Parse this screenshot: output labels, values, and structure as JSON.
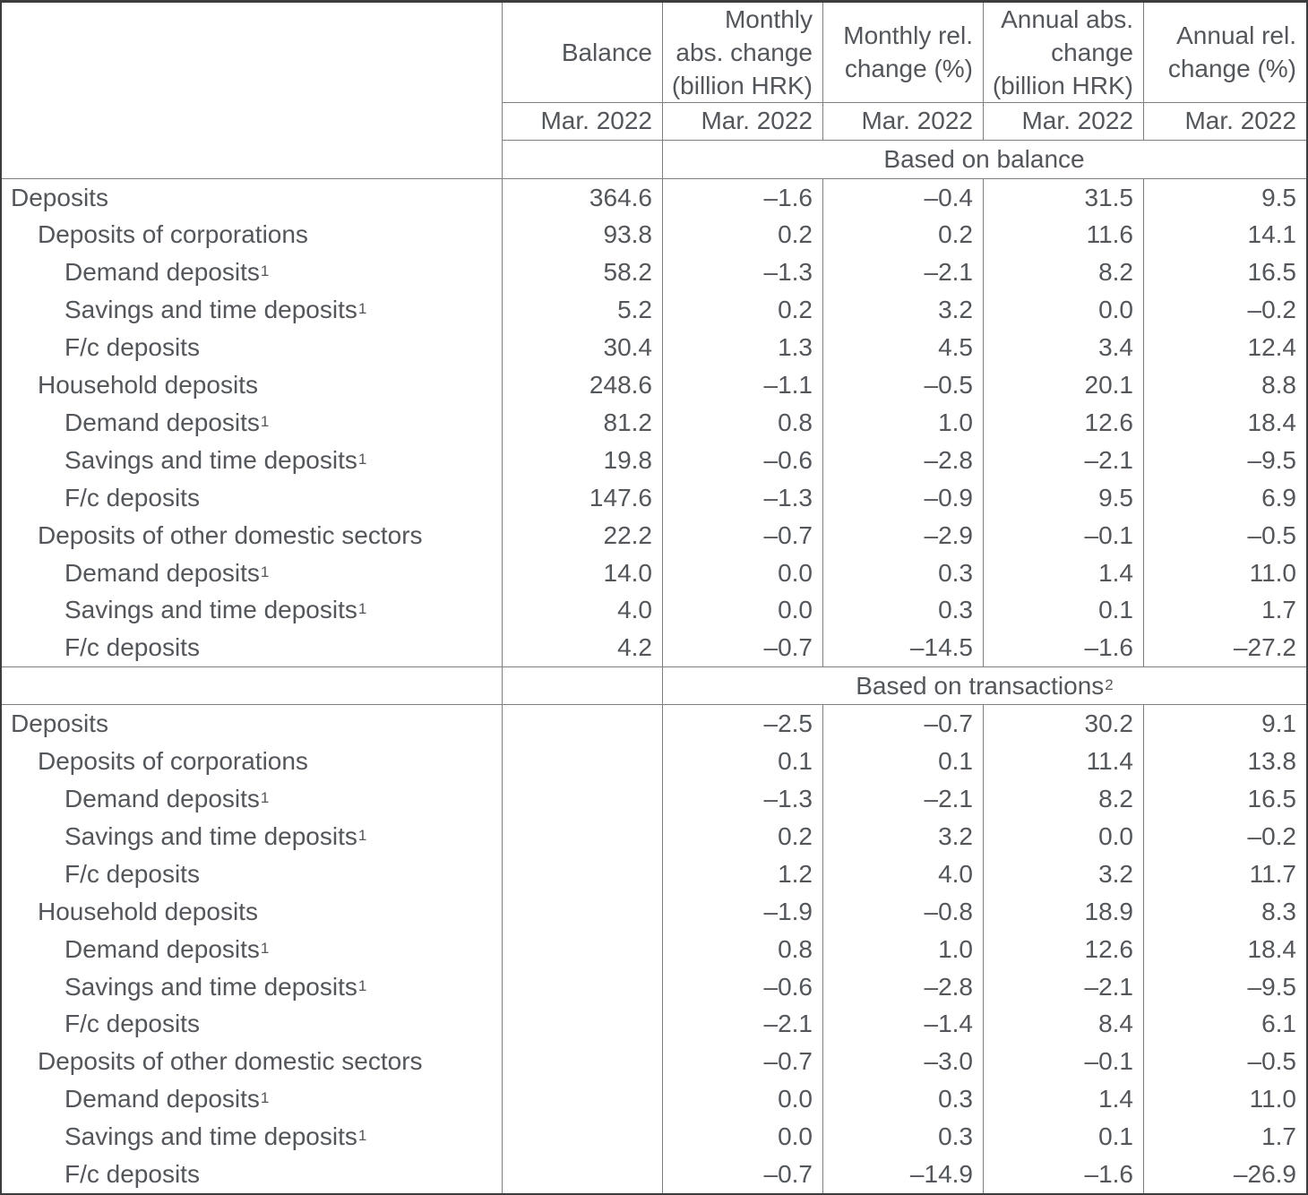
{
  "chart_data": {
    "type": "table",
    "title": "",
    "period": "Mar. 2022",
    "columns": [
      {
        "label": "Balance",
        "header_lines": [
          "Balance"
        ]
      },
      {
        "label": "Monthly abs. change (billion HRK)",
        "header_lines": [
          "Monthly",
          "abs. change",
          "(billion HRK)"
        ]
      },
      {
        "label": "Monthly rel. change (%)",
        "header_lines": [
          "Monthly rel.",
          "change (%)"
        ]
      },
      {
        "label": "Annual abs. change (billion HRK)",
        "header_lines": [
          "Annual abs.",
          "change",
          "(billion HRK)"
        ]
      },
      {
        "label": "Annual rel. change (%)",
        "header_lines": [
          "Annual rel.",
          "change (%)"
        ]
      }
    ],
    "sections": [
      {
        "title": "Based on balance",
        "title_sup": "",
        "rows": [
          {
            "label": "Deposits",
            "indent": 0,
            "values": [
              "364.6",
              "–1.6",
              "–0.4",
              "31.5",
              "9.5"
            ]
          },
          {
            "label": "Deposits of corporations",
            "indent": 1,
            "values": [
              "93.8",
              "0.2",
              "0.2",
              "11.6",
              "14.1"
            ]
          },
          {
            "label": "Demand deposits",
            "sup": "1",
            "indent": 2,
            "values": [
              "58.2",
              "–1.3",
              "–2.1",
              "8.2",
              "16.5"
            ]
          },
          {
            "label": "Savings and time deposits",
            "sup": "1",
            "indent": 2,
            "values": [
              "5.2",
              "0.2",
              "3.2",
              "0.0",
              "–0.2"
            ]
          },
          {
            "label": "F/c deposits",
            "indent": 2,
            "values": [
              "30.4",
              "1.3",
              "4.5",
              "3.4",
              "12.4"
            ]
          },
          {
            "label": "Household deposits",
            "indent": 1,
            "values": [
              "248.6",
              "–1.1",
              "–0.5",
              "20.1",
              "8.8"
            ]
          },
          {
            "label": "Demand deposits",
            "sup": "1",
            "indent": 2,
            "values": [
              "81.2",
              "0.8",
              "1.0",
              "12.6",
              "18.4"
            ]
          },
          {
            "label": "Savings and time deposits",
            "sup": "1",
            "indent": 2,
            "values": [
              "19.8",
              "–0.6",
              "–2.8",
              "–2.1",
              "–9.5"
            ]
          },
          {
            "label": "F/c deposits",
            "indent": 2,
            "values": [
              "147.6",
              "–1.3",
              "–0.9",
              "9.5",
              "6.9"
            ]
          },
          {
            "label": "Deposits of other domestic sectors",
            "indent": 1,
            "values": [
              "22.2",
              "–0.7",
              "–2.9",
              "–0.1",
              "–0.5"
            ]
          },
          {
            "label": "Demand deposits",
            "sup": "1",
            "indent": 2,
            "values": [
              "14.0",
              "0.0",
              "0.3",
              "1.4",
              "11.0"
            ]
          },
          {
            "label": "Savings and time deposits",
            "sup": "1",
            "indent": 2,
            "values": [
              "4.0",
              "0.0",
              "0.3",
              "0.1",
              "1.7"
            ]
          },
          {
            "label": "F/c deposits",
            "indent": 2,
            "values": [
              "4.2",
              "–0.7",
              "–14.5",
              "–1.6",
              "–27.2"
            ]
          }
        ]
      },
      {
        "title": "Based on transactions",
        "title_sup": "2",
        "rows": [
          {
            "label": "Deposits",
            "indent": 0,
            "values": [
              "",
              "–2.5",
              "–0.7",
              "30.2",
              "9.1"
            ]
          },
          {
            "label": "Deposits of corporations",
            "indent": 1,
            "values": [
              "",
              "0.1",
              "0.1",
              "11.4",
              "13.8"
            ]
          },
          {
            "label": "Demand deposits",
            "sup": "1",
            "indent": 2,
            "values": [
              "",
              "–1.3",
              "–2.1",
              "8.2",
              "16.5"
            ]
          },
          {
            "label": "Savings and time deposits",
            "sup": "1",
            "indent": 2,
            "values": [
              "",
              "0.2",
              "3.2",
              "0.0",
              "–0.2"
            ]
          },
          {
            "label": "F/c deposits",
            "indent": 2,
            "values": [
              "",
              "1.2",
              "4.0",
              "3.2",
              "11.7"
            ]
          },
          {
            "label": "Household deposits",
            "indent": 1,
            "values": [
              "",
              "–1.9",
              "–0.8",
              "18.9",
              "8.3"
            ]
          },
          {
            "label": "Demand deposits",
            "sup": "1",
            "indent": 2,
            "values": [
              "",
              "0.8",
              "1.0",
              "12.6",
              "18.4"
            ]
          },
          {
            "label": "Savings and time deposits",
            "sup": "1",
            "indent": 2,
            "values": [
              "",
              "–0.6",
              "–2.8",
              "–2.1",
              "–9.5"
            ]
          },
          {
            "label": "F/c deposits",
            "indent": 2,
            "values": [
              "",
              "–2.1",
              "–1.4",
              "8.4",
              "6.1"
            ]
          },
          {
            "label": "Deposits of other domestic sectors",
            "indent": 1,
            "values": [
              "",
              "–0.7",
              "–3.0",
              "–0.1",
              "–0.5"
            ]
          },
          {
            "label": "Demand deposits",
            "sup": "1",
            "indent": 2,
            "values": [
              "",
              "0.0",
              "0.3",
              "1.4",
              "11.0"
            ]
          },
          {
            "label": "Savings and time deposits",
            "sup": "1",
            "indent": 2,
            "values": [
              "",
              "0.0",
              "0.3",
              "0.1",
              "1.7"
            ]
          },
          {
            "label": "F/c deposits",
            "indent": 2,
            "values": [
              "",
              "–0.7",
              "–14.9",
              "–1.6",
              "–26.9"
            ]
          }
        ]
      }
    ],
    "colors": {
      "text": "#53565a",
      "inner_grid_line": "#7d8083",
      "outer_border": "#3a3c3e",
      "background": "#ffffff"
    }
  }
}
